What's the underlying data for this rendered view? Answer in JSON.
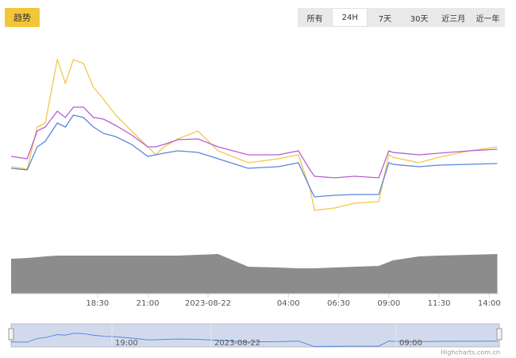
{
  "trend_button": "趋势",
  "range_buttons": [
    "所有",
    "24H",
    "7天",
    "30天",
    "近三月",
    "近一年"
  ],
  "selected_range": 1,
  "credit": "Highcharts.com.cn",
  "navigator_ticks": [
    "19:00",
    "2023-08-22",
    "09:00"
  ],
  "chart_data": [
    {
      "type": "line",
      "xlim": [
        14.2,
        38.5
      ],
      "ylim": [
        0,
        100
      ],
      "xticks": [
        {
          "value": 18.5,
          "label": "18:30"
        },
        {
          "value": 21,
          "label": "21:00"
        },
        {
          "value": 24,
          "label": "2023-08-22"
        },
        {
          "value": 28,
          "label": "04:00"
        },
        {
          "value": 30.5,
          "label": "06:30"
        },
        {
          "value": 33,
          "label": "09:00"
        },
        {
          "value": 35.5,
          "label": "11:30"
        },
        {
          "value": 38,
          "label": "14:00"
        }
      ],
      "x": [
        14.2,
        15,
        15.5,
        15.9,
        16.5,
        16.9,
        17.3,
        17.8,
        18.3,
        18.8,
        19.4,
        20.2,
        21,
        21.4,
        21.8,
        22.5,
        23.5,
        24.5,
        26,
        27.5,
        28.5,
        29.1,
        29.3,
        30.3,
        31.3,
        32.5,
        33,
        33.2,
        34.5,
        35.5,
        37,
        38.4
      ],
      "series": [
        {
          "color": "#f2c84b",
          "values": [
            36,
            34.8,
            56,
            58,
            90,
            78,
            90,
            88,
            76,
            70,
            62,
            54,
            46,
            42,
            46,
            50,
            54,
            44,
            38,
            40,
            42,
            24,
            14,
            15.2,
            17.6,
            18.4,
            42,
            40.8,
            38,
            40.8,
            44,
            46
          ]
        },
        {
          "color": "#b65fd0",
          "values": [
            41.2,
            40,
            54,
            56,
            64,
            60.8,
            66,
            66,
            60.8,
            60,
            56.8,
            52,
            46,
            46,
            47.2,
            49.6,
            50,
            46,
            42,
            42,
            44,
            34,
            31.2,
            30.4,
            31.2,
            30.4,
            44,
            43.2,
            42,
            42.8,
            44,
            44.8
          ]
        },
        {
          "color": "#5b86dd",
          "values": [
            35.2,
            34.4,
            46,
            48.8,
            58,
            56,
            62,
            60.8,
            56,
            52.8,
            51.2,
            47.2,
            41.2,
            42,
            42.8,
            44,
            43.2,
            40,
            35.2,
            36,
            38,
            24.8,
            20.8,
            21.6,
            22,
            22,
            38,
            37.2,
            36,
            36.8,
            37.2,
            37.6
          ]
        }
      ]
    },
    {
      "type": "area",
      "ylim": [
        0,
        60
      ],
      "color": "#8c8c8c",
      "values": [
        44,
        45,
        46,
        47,
        48,
        48,
        48,
        48,
        48,
        48,
        48,
        48,
        48,
        48,
        48,
        48,
        49,
        50,
        34,
        33,
        32,
        32,
        32,
        33,
        34,
        35,
        40,
        42,
        47,
        48,
        49,
        50
      ]
    }
  ]
}
